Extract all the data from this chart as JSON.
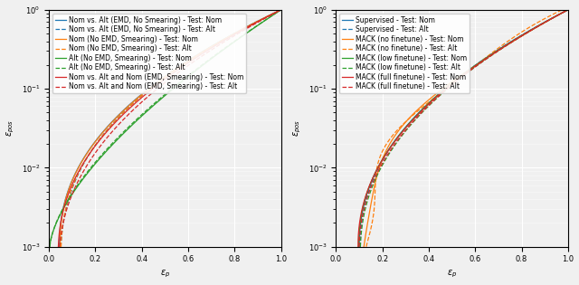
{
  "left_legend": [
    {
      "label": "Nom vs. Alt (EMD, No Smearing) - Test: Nom",
      "color": "#1f77b4",
      "linestyle": "solid"
    },
    {
      "label": "Nom vs. Alt (EMD, No Smearing) - Test: Alt",
      "color": "#1f77b4",
      "linestyle": "dashed"
    },
    {
      "label": "Nom (No EMD, Smearing) - Test: Nom",
      "color": "#ff7f0e",
      "linestyle": "solid"
    },
    {
      "label": "Nom (No EMD, Smearing) - Test: Alt",
      "color": "#ff7f0e",
      "linestyle": "dashed"
    },
    {
      "label": "Alt (No EMD, Smearing) - Test: Nom",
      "color": "#2ca02c",
      "linestyle": "solid"
    },
    {
      "label": "Alt (No EMD, Smearing) - Test: Alt",
      "color": "#2ca02c",
      "linestyle": "dashed"
    },
    {
      "label": "Nom vs. Alt and Nom (EMD, Smearing) - Test: Nom",
      "color": "#d62728",
      "linestyle": "solid"
    },
    {
      "label": "Nom vs. Alt and Nom (EMD, Smearing) - Test: Alt",
      "color": "#d62728",
      "linestyle": "dashed"
    }
  ],
  "right_legend": [
    {
      "label": "Supervised - Test: Nom",
      "color": "#1f77b4",
      "linestyle": "solid"
    },
    {
      "label": "Supervised - Test: Alt",
      "color": "#1f77b4",
      "linestyle": "dashed"
    },
    {
      "label": "MACK (no finetune) - Test: Nom",
      "color": "#ff7f0e",
      "linestyle": "solid"
    },
    {
      "label": "MACK (no finetune) - Test: Alt",
      "color": "#ff7f0e",
      "linestyle": "dashed"
    },
    {
      "label": "MACK (low finetune) - Test: Nom",
      "color": "#2ca02c",
      "linestyle": "solid"
    },
    {
      "label": "MACK (low finetune) - Test: Alt",
      "color": "#2ca02c",
      "linestyle": "dashed"
    },
    {
      "label": "MACK (full finetune) - Test: Nom",
      "color": "#d62728",
      "linestyle": "solid"
    },
    {
      "label": "MACK (full finetune) - Test: Alt",
      "color": "#d62728",
      "linestyle": "dashed"
    }
  ],
  "xlabel": "$\\varepsilon_p$",
  "ylabel": "$\\varepsilon_{pos}$",
  "xlim": [
    0.0,
    1.0
  ],
  "ylim_log": [
    -3,
    0
  ],
  "background_color": "#f0f0f0",
  "grid_color": "white",
  "legend_fontsize": 5.5,
  "axis_fontsize": 7,
  "linewidth": 0.9
}
